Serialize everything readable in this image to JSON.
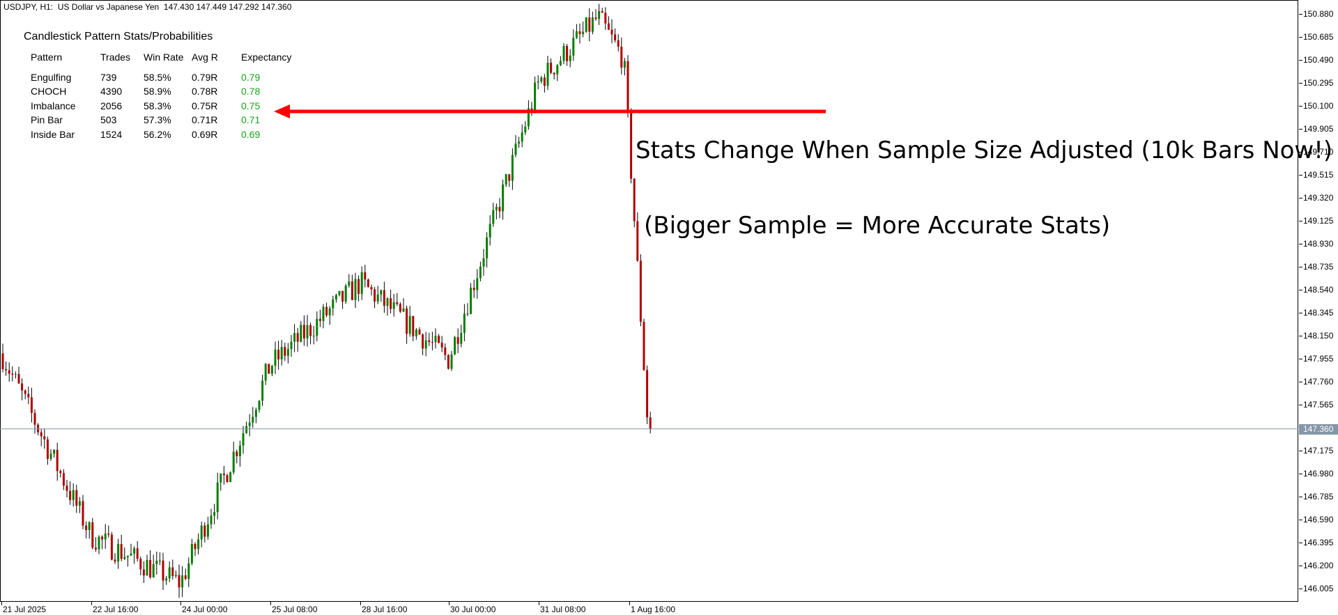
{
  "window": {
    "title": "USDJPY, H1:  US Dollar vs Japanese Yen  147.430 147.449 147.292 147.360"
  },
  "stats_panel": {
    "title": "Candlestick Pattern Stats/Probabilities",
    "headers": [
      "Pattern",
      "Trades",
      "Win Rate",
      "Avg R",
      "Expectancy"
    ],
    "rows": [
      [
        "Engulfing",
        "739",
        "58.5%",
        "0.79R",
        "0.79"
      ],
      [
        "CHOCH",
        "4390",
        "58.9%",
        "0.78R",
        "0.78"
      ],
      [
        "Imbalance",
        "2056",
        "58.3%",
        "0.75R",
        "0.75"
      ],
      [
        "Pin Bar",
        "503",
        "57.3%",
        "0.71R",
        "0.71"
      ],
      [
        "Inside Bar",
        "1524",
        "56.2%",
        "0.69R",
        "0.69"
      ]
    ]
  },
  "annotations": {
    "line1": "Stats Change When Sample Size Adjusted (10k Bars Now!)",
    "line2": "(Bigger Sample = More Accurate Stats)"
  },
  "price_axis": {
    "labels": [
      "150.880",
      "150.685",
      "150.490",
      "150.295",
      "150.100",
      "149.905",
      "149.710",
      "149.515",
      "149.320",
      "149.125",
      "148.930",
      "148.735",
      "148.540",
      "148.345",
      "148.150",
      "147.955",
      "147.760",
      "147.565",
      "147.360",
      "147.175",
      "146.980",
      "146.785",
      "146.590",
      "146.395",
      "146.200",
      "146.005"
    ],
    "current_price": "147.360"
  },
  "time_axis": {
    "labels": [
      "21 Jul 2025",
      "22 Jul 16:00",
      "24 Jul 00:00",
      "25 Jul 08:00",
      "28 Jul 16:00",
      "30 Jul 00:00",
      "31 Jul 08:00",
      "1 Aug 16:00"
    ]
  },
  "colors": {
    "bull": "#008000",
    "bear": "#b00000",
    "arrow": "#ff0000",
    "price_line": "#8596a8",
    "expectancy": "#16a316"
  },
  "chart_data": {
    "type": "candlestick",
    "symbol": "USDJPY",
    "timeframe": "H1",
    "ylim": [
      146.0,
      150.9
    ],
    "current_price": 147.36,
    "key_points": [
      {
        "time": "21 Jul 2025",
        "price": 148.0
      },
      {
        "time": "22 Jul 16:00",
        "price": 146.45
      },
      {
        "time": "24 Jul 00:00",
        "price": 146.05
      },
      {
        "time": "25 Jul 08:00",
        "price": 147.9
      },
      {
        "time": "28 Jul 16:00",
        "price": 148.6
      },
      {
        "time": "30 Jul 00:00",
        "price": 147.95
      },
      {
        "time": "31 Jul 08:00",
        "price": 150.3
      },
      {
        "time": "1 Aug 08:00",
        "price": 150.85
      },
      {
        "time": "1 Aug 12:30",
        "price": 150.5
      },
      {
        "time": "1 Aug 16:00",
        "price": 147.36
      }
    ]
  }
}
